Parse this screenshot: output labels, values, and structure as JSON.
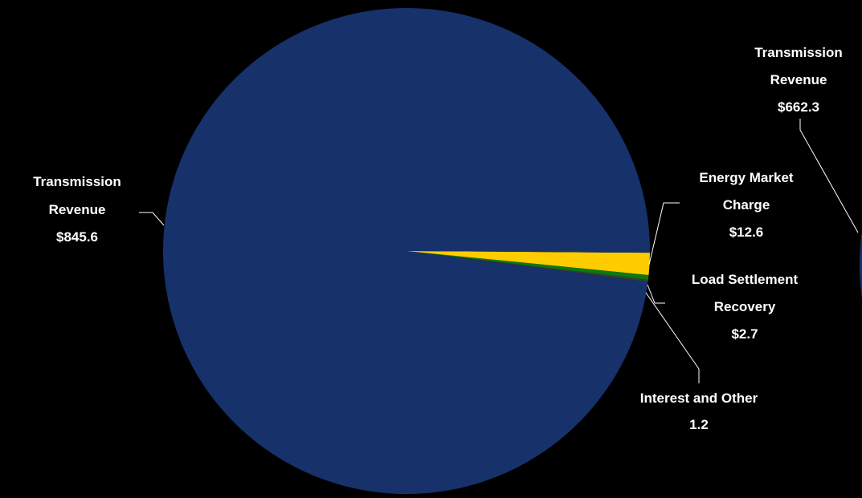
{
  "colors": {
    "background": "#000000",
    "transmission": "#17316B",
    "energy_market": "#FFCC00",
    "load_settlement": "#0B7A0B",
    "interest_other": "#3A3A3A",
    "label_text": "#FFFFFF",
    "leader_line": "#FFFFFF"
  },
  "chart_data": [
    {
      "type": "pie",
      "title": "",
      "slices": [
        {
          "label": [
            "Transmission",
            "Revenue",
            "$845.6"
          ],
          "value": 845.6,
          "color_key": "transmission"
        },
        {
          "label": [
            "Energy Market",
            "Charge",
            "$12.6"
          ],
          "value": 12.6,
          "color_key": "energy_market"
        },
        {
          "label": [
            "Load Settlement",
            "Recovery",
            "$2.7"
          ],
          "value": 2.7,
          "color_key": "load_settlement"
        },
        {
          "label": [
            "Interest and Other",
            "1.2"
          ],
          "value": 1.2,
          "color_key": "interest_other"
        }
      ]
    },
    {
      "type": "pie",
      "title": "",
      "partially_visible": true,
      "slices": [
        {
          "label": [
            "Transmission",
            "Revenue",
            "$662.3"
          ],
          "value": 662.3,
          "color_key": "transmission"
        }
      ]
    }
  ]
}
